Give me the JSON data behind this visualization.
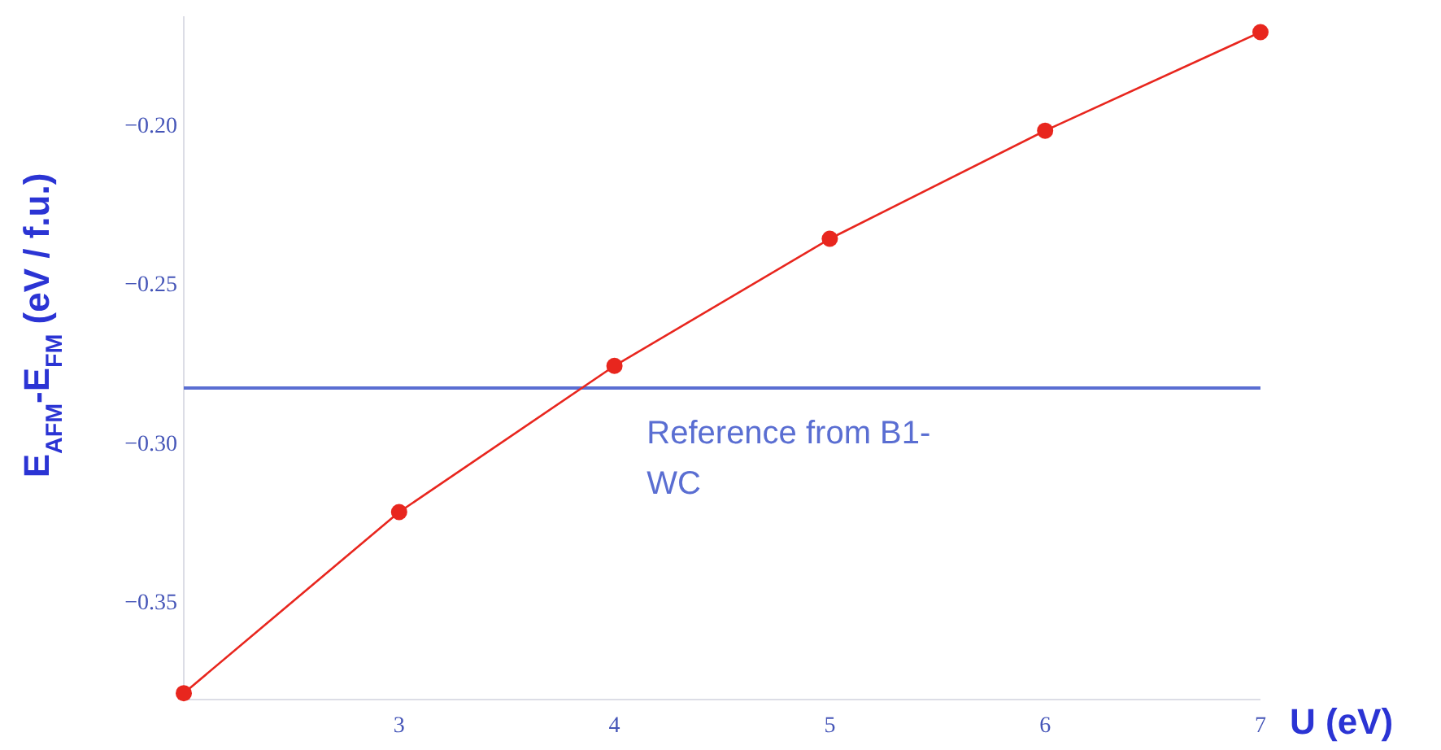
{
  "chart_data": {
    "type": "line",
    "xlabel": "U (eV)",
    "ylabel": "E$_{AFM}$-E$_{FM}$ (eV / f.u.)",
    "x": [
      2,
      3,
      4,
      5,
      6,
      7
    ],
    "series": [
      {
        "color": "#e8261e",
        "values": [
          -0.379,
          -0.322,
          -0.276,
          -0.236,
          -0.202,
          -0.171
        ]
      }
    ],
    "xlim": [
      2,
      7
    ],
    "xticks": [
      3,
      4,
      5,
      6,
      7
    ],
    "ylim": [
      -0.381,
      -0.166
    ],
    "yticks": [
      {
        "value": -0.35,
        "label": "−0.35"
      },
      {
        "value": -0.3,
        "label": "−0.30"
      },
      {
        "value": -0.25,
        "label": "−0.25"
      },
      {
        "value": -0.2,
        "label": "−0.20"
      }
    ],
    "ref_lines": [
      {
        "axis": "y",
        "value": -0.283,
        "label": "Reference from B1-WC",
        "color": "#5a6ed2"
      }
    ],
    "grid": false,
    "marker": "circle",
    "line_style": "solid"
  }
}
